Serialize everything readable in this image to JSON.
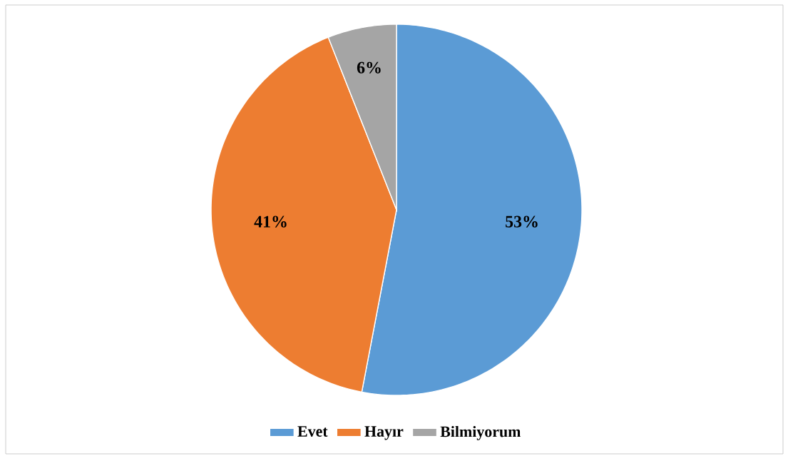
{
  "chart_data": {
    "type": "pie",
    "categories": [
      "Evet",
      "Hayır",
      "Bilmiyorum"
    ],
    "values": [
      53,
      41,
      6
    ],
    "value_labels": [
      "53%",
      "41%",
      "6%"
    ],
    "colors": [
      "#5b9bd5",
      "#ed7d31",
      "#a5a5a5"
    ],
    "legend": "bottom"
  }
}
